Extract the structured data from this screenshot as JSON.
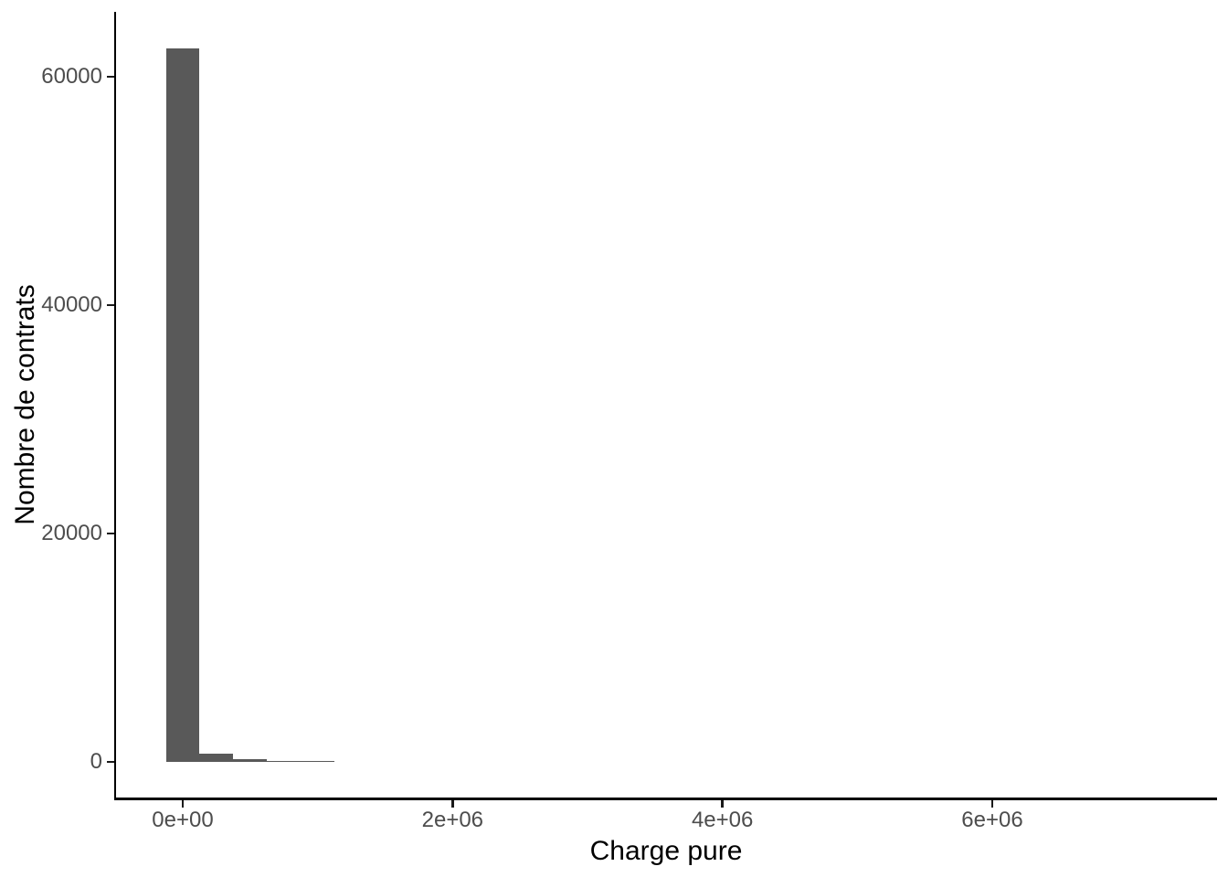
{
  "chart_data": {
    "type": "bar",
    "subtype": "histogram",
    "xlabel": "Charge pure",
    "ylabel": "Nombre de contrats",
    "bar_color": "#595959",
    "axis_text_color": "#4D4D4D",
    "axis_line_color": "#000000",
    "background_color": "#FFFFFF",
    "legend": "none",
    "grid": "off",
    "bin_width": 250000,
    "bins": [
      {
        "center": 0,
        "count": 62500
      },
      {
        "center": 250000,
        "count": 700
      },
      {
        "center": 500000,
        "count": 215
      },
      {
        "center": 750000,
        "count": 110
      },
      {
        "center": 1000000,
        "count": 95
      }
    ],
    "x_ticks": [
      {
        "value": 0,
        "label": "0e+00"
      },
      {
        "value": 2000000,
        "label": "2e+06"
      },
      {
        "value": 4000000,
        "label": "4e+06"
      },
      {
        "value": 6000000,
        "label": "6e+06"
      }
    ],
    "y_ticks": [
      {
        "value": 0,
        "label": "0"
      },
      {
        "value": 20000,
        "label": "20000"
      },
      {
        "value": 40000,
        "label": "40000"
      },
      {
        "value": 60000,
        "label": "60000"
      }
    ],
    "xlim": [
      -500000,
      7660000
    ],
    "ylim": [
      -3300,
      65700
    ]
  }
}
